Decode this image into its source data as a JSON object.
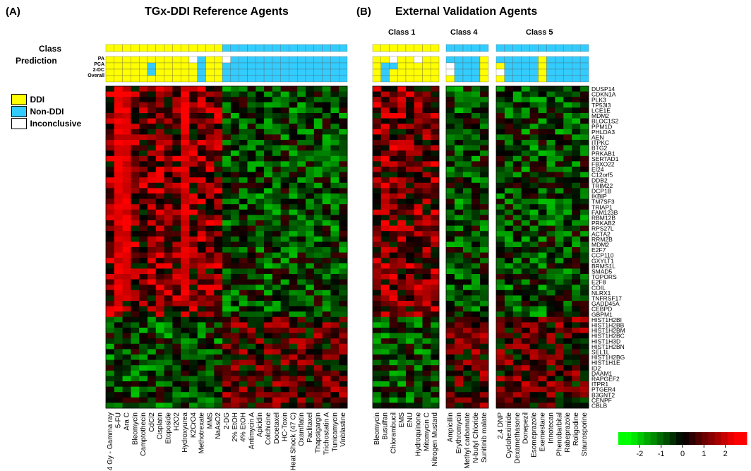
{
  "panel_a": {
    "label": "(A)",
    "title": "TGx-DDI Reference Agents"
  },
  "panel_b": {
    "label": "(B)",
    "title": "External Validation Agents"
  },
  "class_headers": [
    "Class 1",
    "Class 4",
    "Class 5"
  ],
  "row_labels": {
    "class": "Class",
    "prediction": "Prediction"
  },
  "prediction_rows": [
    "PA",
    "PCA",
    "2-DC",
    "Overall"
  ],
  "legend": {
    "ddi": "DDI",
    "non_ddi": "Non-DDI",
    "inconclusive": "Inconclusive"
  },
  "colors": {
    "ddi": "#ffff00",
    "non_ddi": "#33ccff",
    "inconclusive": "#ffffff",
    "low": "#00ff00",
    "mid": "#000000",
    "high": "#ff0000"
  },
  "chart_data": {
    "type": "heatmap",
    "genes": [
      "DUSP14",
      "CDKN1A",
      "PLK3",
      "TP53I3",
      "LCE1E",
      "MDM2",
      "BLOC1S2",
      "PPM1D",
      "PHLDA3",
      "AEN",
      "ITPKC",
      "BTG2",
      "PRKAB1",
      "SERTAD1",
      "FBXO22",
      "EI24",
      "C12orf5",
      "DDB2",
      "TRIM22",
      "DCP1B",
      "IKBIP",
      "TM7SF3",
      "TRIAP1",
      "FAM123B",
      "RBM12B",
      "PRKAB2",
      "RPS27L",
      "ACTA2",
      "RRM2B",
      "MDM2",
      "E2F7",
      "CCP110",
      "GXYLT1",
      "BRMS1L",
      "SMAD5",
      "TOPORS",
      "E2F8",
      "COIL",
      "NLRX1",
      "TNFRSF17",
      "GADD45A",
      "CEBPD",
      "GBPM1",
      "HIST1H2BI",
      "HIST1H2BB",
      "HIST1H2BM",
      "HIST1H2BC",
      "HIST1H3D",
      "HIST1H2BN",
      "SEL1L",
      "HIST1H2BG",
      "HIST1H1E",
      "ID2",
      "DAAM1",
      "RAPGEF2",
      "ITPR1",
      "PTGER4",
      "B3GNT2",
      "CENPF",
      "CBLB"
    ],
    "agents_a": [
      "4 Gy - Gamma ray",
      "5-FU",
      "Ara C",
      "Bleomycin",
      "Camptothecin",
      "CdCl2",
      "Cisplatin",
      "Etoposide",
      "H2O2",
      "Hydroxyurea",
      "K2CrO4",
      "Methotrexate",
      "MMS",
      "NaAsO2",
      "2-DG",
      "2% EtOH",
      "4% EtOH",
      "Antimycin A",
      "Apicidin",
      "Colchicine",
      "Docetaxel",
      "HC-Toxin",
      "Heat Shock (47 C)",
      "Oxamflatin",
      "Paclitaxel",
      "Thapsigargin",
      "Trichostatin A",
      "Tunicamycin",
      "Vinblastine"
    ],
    "agents_b_class1": [
      "Bleomycin",
      "Busulfan",
      "Chlorambucil",
      "EMS",
      "ENU",
      "Hydroquinone",
      "Mitomycin C",
      "Nitrogen Mustard"
    ],
    "agents_b_class4": [
      "Ampicillin",
      "Erythromycin",
      "Methyl carbamate",
      "N-butyl Chloride",
      "Sunitinib malate"
    ],
    "agents_b_class5": [
      "2,4 DNP",
      "Cycloheximide",
      "Dexamethasone",
      "Donepezil",
      "Esomeprazole",
      "Exemestane",
      "Irinotecan",
      "Phenobarbital",
      "Rabeprazole",
      "Roligodine",
      "Staurosporine"
    ],
    "scale": {
      "ticks": [
        -2,
        -1,
        0,
        1,
        2
      ],
      "min": -3,
      "max": 3
    }
  }
}
